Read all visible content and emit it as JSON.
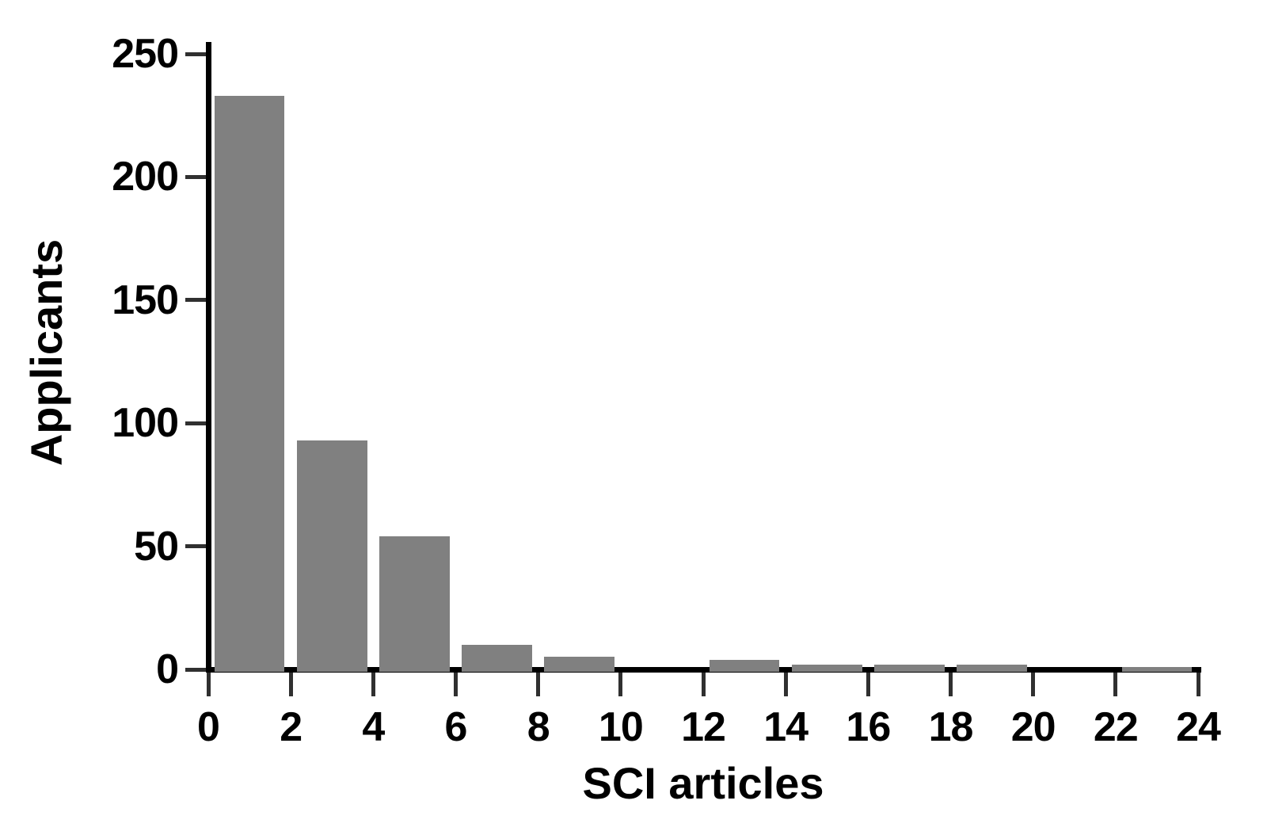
{
  "chart_data": {
    "type": "bar",
    "title": "",
    "xlabel": "SCI articles",
    "ylabel": "Applicants",
    "bin_width": 2,
    "bin_starts": [
      0,
      2,
      4,
      6,
      8,
      10,
      12,
      14,
      16,
      18,
      20,
      22
    ],
    "values": [
      233,
      93,
      54,
      10,
      5,
      0,
      4,
      2,
      2,
      2,
      0,
      1
    ],
    "xlim": [
      0,
      24
    ],
    "ylim": [
      0,
      250
    ],
    "x_ticks": [
      0,
      2,
      4,
      6,
      8,
      10,
      12,
      14,
      16,
      18,
      20,
      22,
      24
    ],
    "y_ticks": [
      0,
      50,
      100,
      150,
      200,
      250
    ],
    "grid": false,
    "legend": false,
    "bar_color": "#808080",
    "axis_color": "#000000",
    "tick_color": "#303030",
    "background": "#ffffff"
  }
}
